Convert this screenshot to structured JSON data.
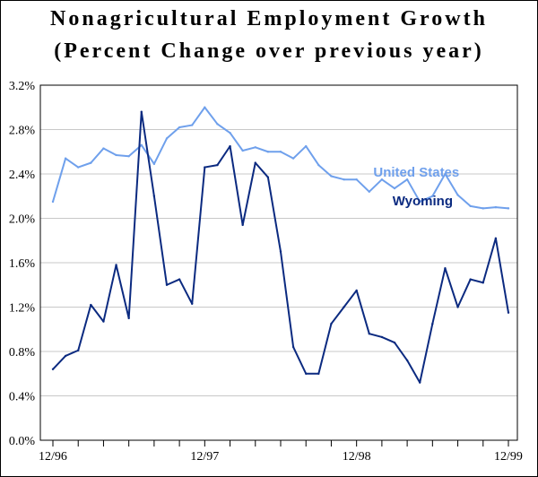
{
  "chart_data": {
    "type": "line",
    "title": "Nonagricultural Employment Growth",
    "subtitle": "(Percent Change over previous year)",
    "xlabel": "",
    "ylabel": "",
    "ylim": [
      0,
      3.2
    ],
    "y_ticks": [
      "0.0%",
      "0.4%",
      "0.8%",
      "1.2%",
      "1.6%",
      "2.0%",
      "2.4%",
      "2.8%",
      "3.2%"
    ],
    "x_ticks": [
      {
        "label": "12/96",
        "month": 0
      },
      {
        "label": "12/97",
        "month": 12
      },
      {
        "label": "12/98",
        "month": 24
      },
      {
        "label": "12/99",
        "month": 36
      }
    ],
    "x_range": [
      0,
      36
    ],
    "grid": "horizontal",
    "legend": "inline labels",
    "series": [
      {
        "name": "United States",
        "color": "#6fa0ec",
        "label_at_month": 30,
        "values": [
          2.15,
          2.54,
          2.46,
          2.5,
          2.63,
          2.57,
          2.56,
          2.66,
          2.49,
          2.72,
          2.82,
          2.84,
          3.0,
          2.85,
          2.77,
          2.61,
          2.64,
          2.6,
          2.6,
          2.54,
          2.65,
          2.48,
          2.38,
          2.35,
          2.35,
          2.24,
          2.35,
          2.27,
          2.35,
          2.15,
          2.2,
          2.4,
          2.21,
          2.11,
          2.09,
          2.1,
          2.09
        ]
      },
      {
        "name": "Wyoming",
        "color": "#0b2a80",
        "label_at_month": 30.5,
        "values": [
          0.64,
          0.76,
          0.81,
          1.22,
          1.07,
          1.58,
          1.1,
          2.96,
          2.2,
          1.4,
          1.45,
          1.23,
          2.46,
          2.48,
          2.65,
          1.94,
          2.5,
          2.37,
          1.7,
          0.84,
          0.6,
          0.6,
          1.05,
          1.2,
          1.35,
          0.96,
          0.93,
          0.88,
          0.72,
          0.52,
          1.05,
          1.55,
          1.2,
          1.45,
          1.42,
          1.82,
          1.15
        ]
      }
    ]
  }
}
